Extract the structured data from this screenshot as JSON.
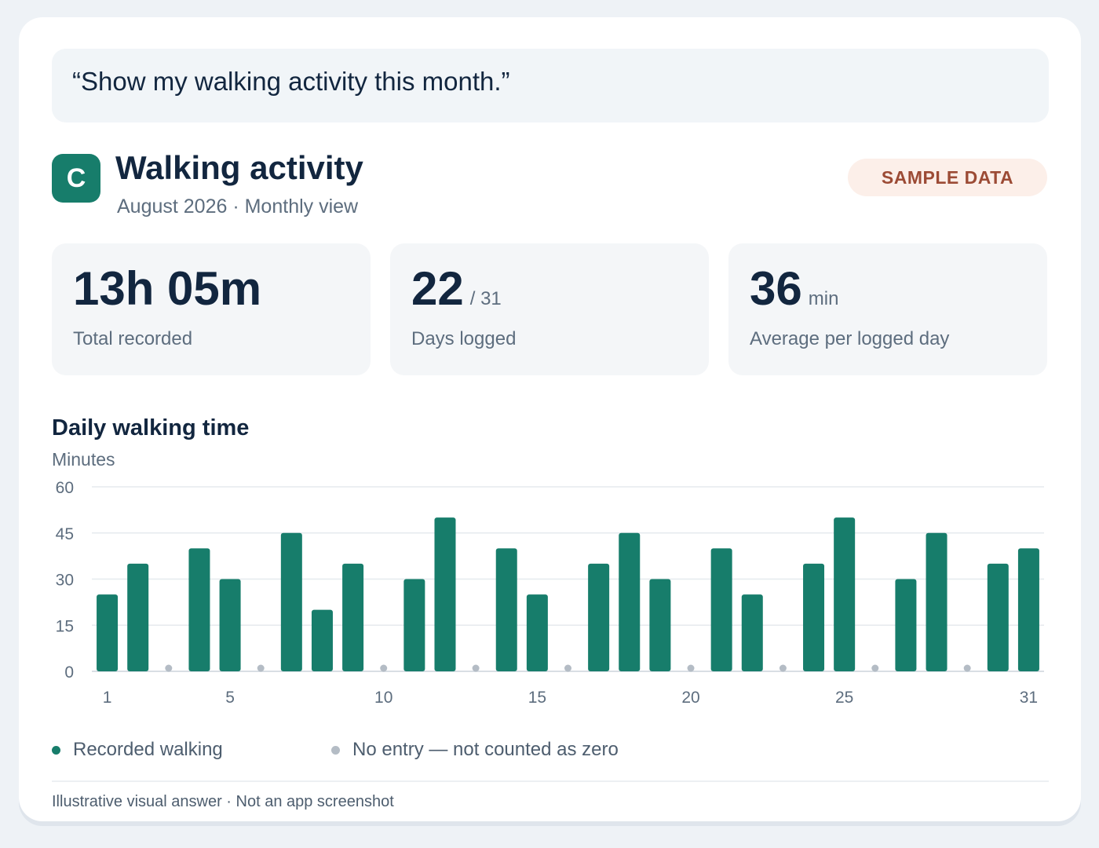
{
  "prompt": "“Show my walking activity this month.”",
  "header": {
    "logo_letter": "C",
    "title": "Walking activity",
    "subtitle": "August 2026 · Monthly view",
    "badge": "SAMPLE DATA"
  },
  "stats": [
    {
      "value": "13h 05m",
      "unit": "",
      "label": "Total recorded"
    },
    {
      "value": "22",
      "unit": "/ 31",
      "label": "Days logged"
    },
    {
      "value": "36",
      "unit": "min",
      "label": "Average per logged day"
    }
  ],
  "chart_data": {
    "type": "bar",
    "title": "Daily walking time",
    "ylabel": "Minutes",
    "ylim": [
      0,
      60
    ],
    "yticks": [
      0,
      15,
      30,
      45,
      60
    ],
    "xticks": [
      1,
      5,
      10,
      15,
      20,
      25,
      31
    ],
    "x": [
      1,
      2,
      3,
      4,
      5,
      6,
      7,
      8,
      9,
      10,
      11,
      12,
      13,
      14,
      15,
      16,
      17,
      18,
      19,
      20,
      21,
      22,
      23,
      24,
      25,
      26,
      27,
      28,
      29,
      30,
      31
    ],
    "values": [
      25,
      35,
      null,
      40,
      30,
      null,
      45,
      20,
      35,
      null,
      30,
      50,
      null,
      40,
      25,
      null,
      35,
      45,
      30,
      null,
      40,
      25,
      null,
      35,
      50,
      null,
      30,
      45,
      null,
      35,
      40
    ],
    "grid": true,
    "colors": {
      "recorded": "#177d6b",
      "no_entry": "#b4bcc5"
    },
    "legend": [
      {
        "name": "Recorded walking",
        "color": "#177d6b"
      },
      {
        "name": "No entry — not counted as zero",
        "color": "#b4bcc5"
      }
    ]
  },
  "footer": "Illustrative visual answer · Not an app screenshot"
}
